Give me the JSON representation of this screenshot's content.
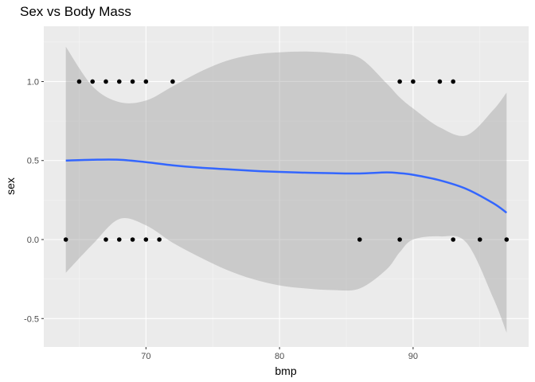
{
  "chart_data": {
    "type": "scatter",
    "title": "Sex vs Body Mass",
    "xlabel": "bmp",
    "ylabel": "sex",
    "xlim": [
      62.35,
      98.65
    ],
    "ylim": [
      -0.68,
      1.35
    ],
    "x_ticks": [
      70,
      80,
      90
    ],
    "y_ticks": [
      -0.5,
      0.0,
      0.5,
      1.0
    ],
    "x_tick_labels": [
      "70",
      "80",
      "90"
    ],
    "y_tick_labels": [
      "-0.5",
      "0.0",
      "0.5",
      "1.0"
    ],
    "grid": true,
    "legend": "none",
    "colors": {
      "panel_background": "#ebebeb",
      "grid_major": "#ffffff",
      "grid_minor": "#f5f5f5",
      "points": "#000000",
      "smooth_line": "#3366ff",
      "confidence_band": "#999999"
    },
    "points": [
      {
        "x": 64,
        "y": 0
      },
      {
        "x": 65,
        "y": 1
      },
      {
        "x": 66,
        "y": 1
      },
      {
        "x": 67,
        "y": 1
      },
      {
        "x": 67,
        "y": 0
      },
      {
        "x": 68,
        "y": 1
      },
      {
        "x": 68,
        "y": 0
      },
      {
        "x": 69,
        "y": 1
      },
      {
        "x": 69,
        "y": 0
      },
      {
        "x": 70,
        "y": 1
      },
      {
        "x": 70,
        "y": 0
      },
      {
        "x": 71,
        "y": 0
      },
      {
        "x": 72,
        "y": 1
      },
      {
        "x": 86,
        "y": 0
      },
      {
        "x": 89,
        "y": 1
      },
      {
        "x": 89,
        "y": 0
      },
      {
        "x": 90,
        "y": 1
      },
      {
        "x": 92,
        "y": 1
      },
      {
        "x": 93,
        "y": 1
      },
      {
        "x": 93,
        "y": 0
      },
      {
        "x": 95,
        "y": 0
      },
      {
        "x": 97,
        "y": 0
      }
    ],
    "smooth": {
      "method": "loess",
      "x": [
        64,
        66,
        68,
        70,
        72,
        74,
        76,
        78,
        80,
        82,
        84,
        86,
        88,
        89,
        90,
        92,
        94,
        96,
        97
      ],
      "y": [
        0.5,
        0.505,
        0.505,
        0.49,
        0.47,
        0.455,
        0.445,
        0.435,
        0.428,
        0.423,
        0.42,
        0.418,
        0.425,
        0.42,
        0.41,
        0.375,
        0.32,
        0.23,
        0.17
      ],
      "upper": [
        1.22,
        0.97,
        0.87,
        0.88,
        0.97,
        1.06,
        1.13,
        1.17,
        1.185,
        1.19,
        1.18,
        1.15,
        0.99,
        0.9,
        0.83,
        0.71,
        0.66,
        0.82,
        0.93
      ],
      "lower": [
        -0.21,
        -0.03,
        0.13,
        0.09,
        -0.02,
        -0.11,
        -0.19,
        -0.25,
        -0.29,
        -0.31,
        -0.32,
        -0.31,
        -0.19,
        -0.08,
        0.0,
        0.02,
        -0.02,
        -0.37,
        -0.59
      ]
    }
  }
}
